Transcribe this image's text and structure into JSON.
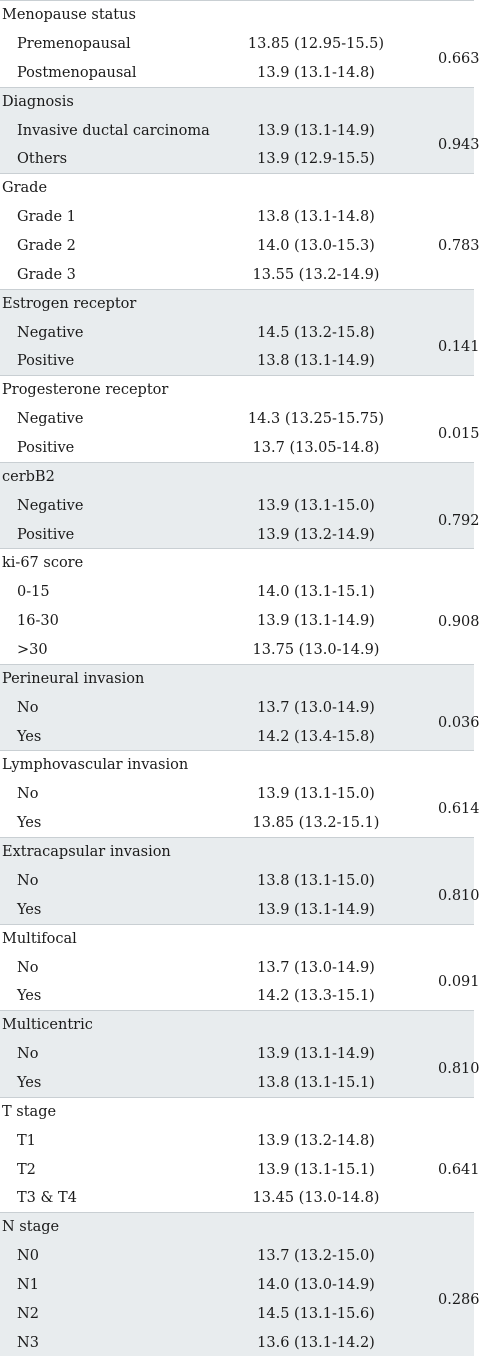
{
  "groups": [
    {
      "title": "Menopause status",
      "p": "0.663",
      "rows": [
        {
          "label": "Premenopausal",
          "value": "13.85 (12.95-15.5)"
        },
        {
          "label": "Postmenopausal",
          "value": "13.9 (13.1-14.8)"
        }
      ]
    },
    {
      "title": "Diagnosis",
      "p": "0.943",
      "rows": [
        {
          "label": "Invasive ductal carcinoma",
          "value": "13.9 (13.1-14.9)"
        },
        {
          "label": "Others",
          "value": "13.9 (12.9-15.5)"
        }
      ]
    },
    {
      "title": "Grade",
      "p": "0.783",
      "rows": [
        {
          "label": "Grade 1",
          "value": "13.8 (13.1-14.8)"
        },
        {
          "label": "Grade 2",
          "value": "14.0 (13.0-15.3)"
        },
        {
          "label": "Grade 3",
          "value": "13.55 (13.2-14.9)"
        }
      ]
    },
    {
      "title": "Estrogen receptor",
      "p": "0.141",
      "rows": [
        {
          "label": "Negative",
          "value": "14.5 (13.2-15.8)"
        },
        {
          "label": "Positive",
          "value": "13.8 (13.1-14.9)"
        }
      ]
    },
    {
      "title": "Progesterone receptor",
      "p": "0.015",
      "rows": [
        {
          "label": "Negative",
          "value": "14.3 (13.25-15.75)"
        },
        {
          "label": "Positive",
          "value": "13.7 (13.05-14.8)"
        }
      ]
    },
    {
      "title": "cerbB2",
      "p": "0.792",
      "rows": [
        {
          "label": "Negative",
          "value": "13.9 (13.1-15.0)"
        },
        {
          "label": "Positive",
          "value": "13.9 (13.2-14.9)"
        }
      ]
    },
    {
      "title": "ki-67 score",
      "p": "0.908",
      "rows": [
        {
          "label": "0-15",
          "value": "14.0 (13.1-15.1)"
        },
        {
          "label": "16-30",
          "value": "13.9 (13.1-14.9)"
        },
        {
          "label": ">30",
          "value": "13.75 (13.0-14.9)"
        }
      ]
    },
    {
      "title": "Perineural invasion",
      "p": "0.036",
      "rows": [
        {
          "label": "No",
          "value": "13.7 (13.0-14.9)"
        },
        {
          "label": "Yes",
          "value": "14.2 (13.4-15.8)"
        }
      ]
    },
    {
      "title": "Lymphovascular invasion",
      "p": "0.614",
      "rows": [
        {
          "label": "No",
          "value": "13.9 (13.1-15.0)"
        },
        {
          "label": "Yes",
          "value": "13.85 (13.2-15.1)"
        }
      ]
    },
    {
      "title": "Extracapsular invasion",
      "p": "0.810",
      "rows": [
        {
          "label": "No",
          "value": "13.8 (13.1-15.0)"
        },
        {
          "label": "Yes",
          "value": "13.9 (13.1-14.9)"
        }
      ]
    },
    {
      "title": "Multifocal",
      "p": "0.091",
      "rows": [
        {
          "label": "No",
          "value": "13.7 (13.0-14.9)"
        },
        {
          "label": "Yes",
          "value": "14.2 (13.3-15.1)"
        }
      ]
    },
    {
      "title": "Multicentric",
      "p": "0.810",
      "rows": [
        {
          "label": "No",
          "value": "13.9 (13.1-14.9)"
        },
        {
          "label": "Yes",
          "value": "13.8 (13.1-15.1)"
        }
      ]
    },
    {
      "title": "T stage",
      "p": "0.641",
      "rows": [
        {
          "label": "T1",
          "value": "13.9 (13.2-14.8)"
        },
        {
          "label": "T2",
          "value": "13.9 (13.1-15.1)"
        },
        {
          "label": "T3 & T4",
          "value": "13.45 (13.0-14.8)"
        }
      ]
    },
    {
      "title": "N stage",
      "p": "0.286",
      "rows": [
        {
          "label": "N0",
          "value": "13.7 (13.2-15.0)"
        },
        {
          "label": "N1",
          "value": "14.0 (13.0-14.9)"
        },
        {
          "label": "N2",
          "value": "14.5 (13.1-15.6)"
        },
        {
          "label": "N3",
          "value": "13.6 (13.1-14.2)"
        }
      ]
    }
  ]
}
